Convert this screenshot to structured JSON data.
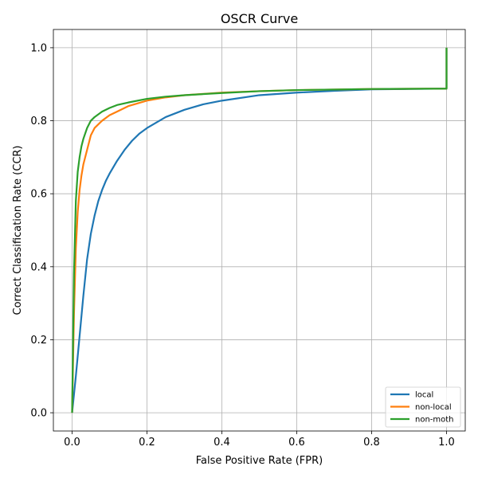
{
  "chart_data": {
    "type": "line",
    "title": "OSCR Curve",
    "xlabel": "False Positive Rate (FPR)",
    "ylabel": "Correct Classification Rate (CCR)",
    "xlim": [
      -0.05,
      1.05
    ],
    "ylim": [
      -0.05,
      1.05
    ],
    "xticks": [
      0.0,
      0.2,
      0.4,
      0.6,
      0.8,
      1.0
    ],
    "xtick_labels": [
      "0.0",
      "0.2",
      "0.4",
      "0.6",
      "0.8",
      "1.0"
    ],
    "yticks": [
      0.0,
      0.2,
      0.4,
      0.6,
      0.8,
      1.0
    ],
    "ytick_labels": [
      "0.0",
      "0.2",
      "0.4",
      "0.6",
      "0.8",
      "1.0"
    ],
    "grid": true,
    "legend_position": "lower-right",
    "series": [
      {
        "name": "local",
        "color": "#1f77b4",
        "x": [
          0.0,
          0.01,
          0.02,
          0.03,
          0.04,
          0.05,
          0.06,
          0.07,
          0.08,
          0.09,
          0.1,
          0.12,
          0.14,
          0.16,
          0.18,
          0.2,
          0.25,
          0.3,
          0.35,
          0.4,
          0.5,
          0.6,
          0.7,
          0.8,
          0.9,
          1.0,
          1.0
        ],
        "y": [
          0.0,
          0.1,
          0.21,
          0.32,
          0.42,
          0.49,
          0.54,
          0.58,
          0.61,
          0.635,
          0.655,
          0.69,
          0.72,
          0.745,
          0.765,
          0.78,
          0.81,
          0.83,
          0.845,
          0.855,
          0.87,
          0.877,
          0.882,
          0.886,
          0.887,
          0.888,
          1.0
        ]
      },
      {
        "name": "non-local",
        "color": "#ff7f0e",
        "x": [
          0.0,
          0.005,
          0.01,
          0.015,
          0.02,
          0.025,
          0.03,
          0.04,
          0.05,
          0.06,
          0.08,
          0.1,
          0.12,
          0.15,
          0.2,
          0.25,
          0.3,
          0.4,
          0.5,
          0.6,
          0.8,
          1.0,
          1.0
        ],
        "y": [
          0.0,
          0.27,
          0.45,
          0.55,
          0.61,
          0.65,
          0.68,
          0.72,
          0.76,
          0.78,
          0.8,
          0.815,
          0.825,
          0.84,
          0.855,
          0.864,
          0.87,
          0.877,
          0.881,
          0.884,
          0.887,
          0.888,
          1.0
        ]
      },
      {
        "name": "non-moth",
        "color": "#2ca02c",
        "x": [
          0.0,
          0.005,
          0.01,
          0.015,
          0.02,
          0.025,
          0.03,
          0.04,
          0.05,
          0.06,
          0.08,
          0.1,
          0.12,
          0.15,
          0.2,
          0.25,
          0.3,
          0.4,
          0.5,
          0.6,
          0.8,
          1.0,
          1.0
        ],
        "y": [
          0.0,
          0.38,
          0.58,
          0.66,
          0.7,
          0.73,
          0.75,
          0.78,
          0.8,
          0.81,
          0.825,
          0.835,
          0.843,
          0.85,
          0.86,
          0.866,
          0.87,
          0.876,
          0.881,
          0.884,
          0.887,
          0.888,
          1.0
        ]
      }
    ]
  }
}
